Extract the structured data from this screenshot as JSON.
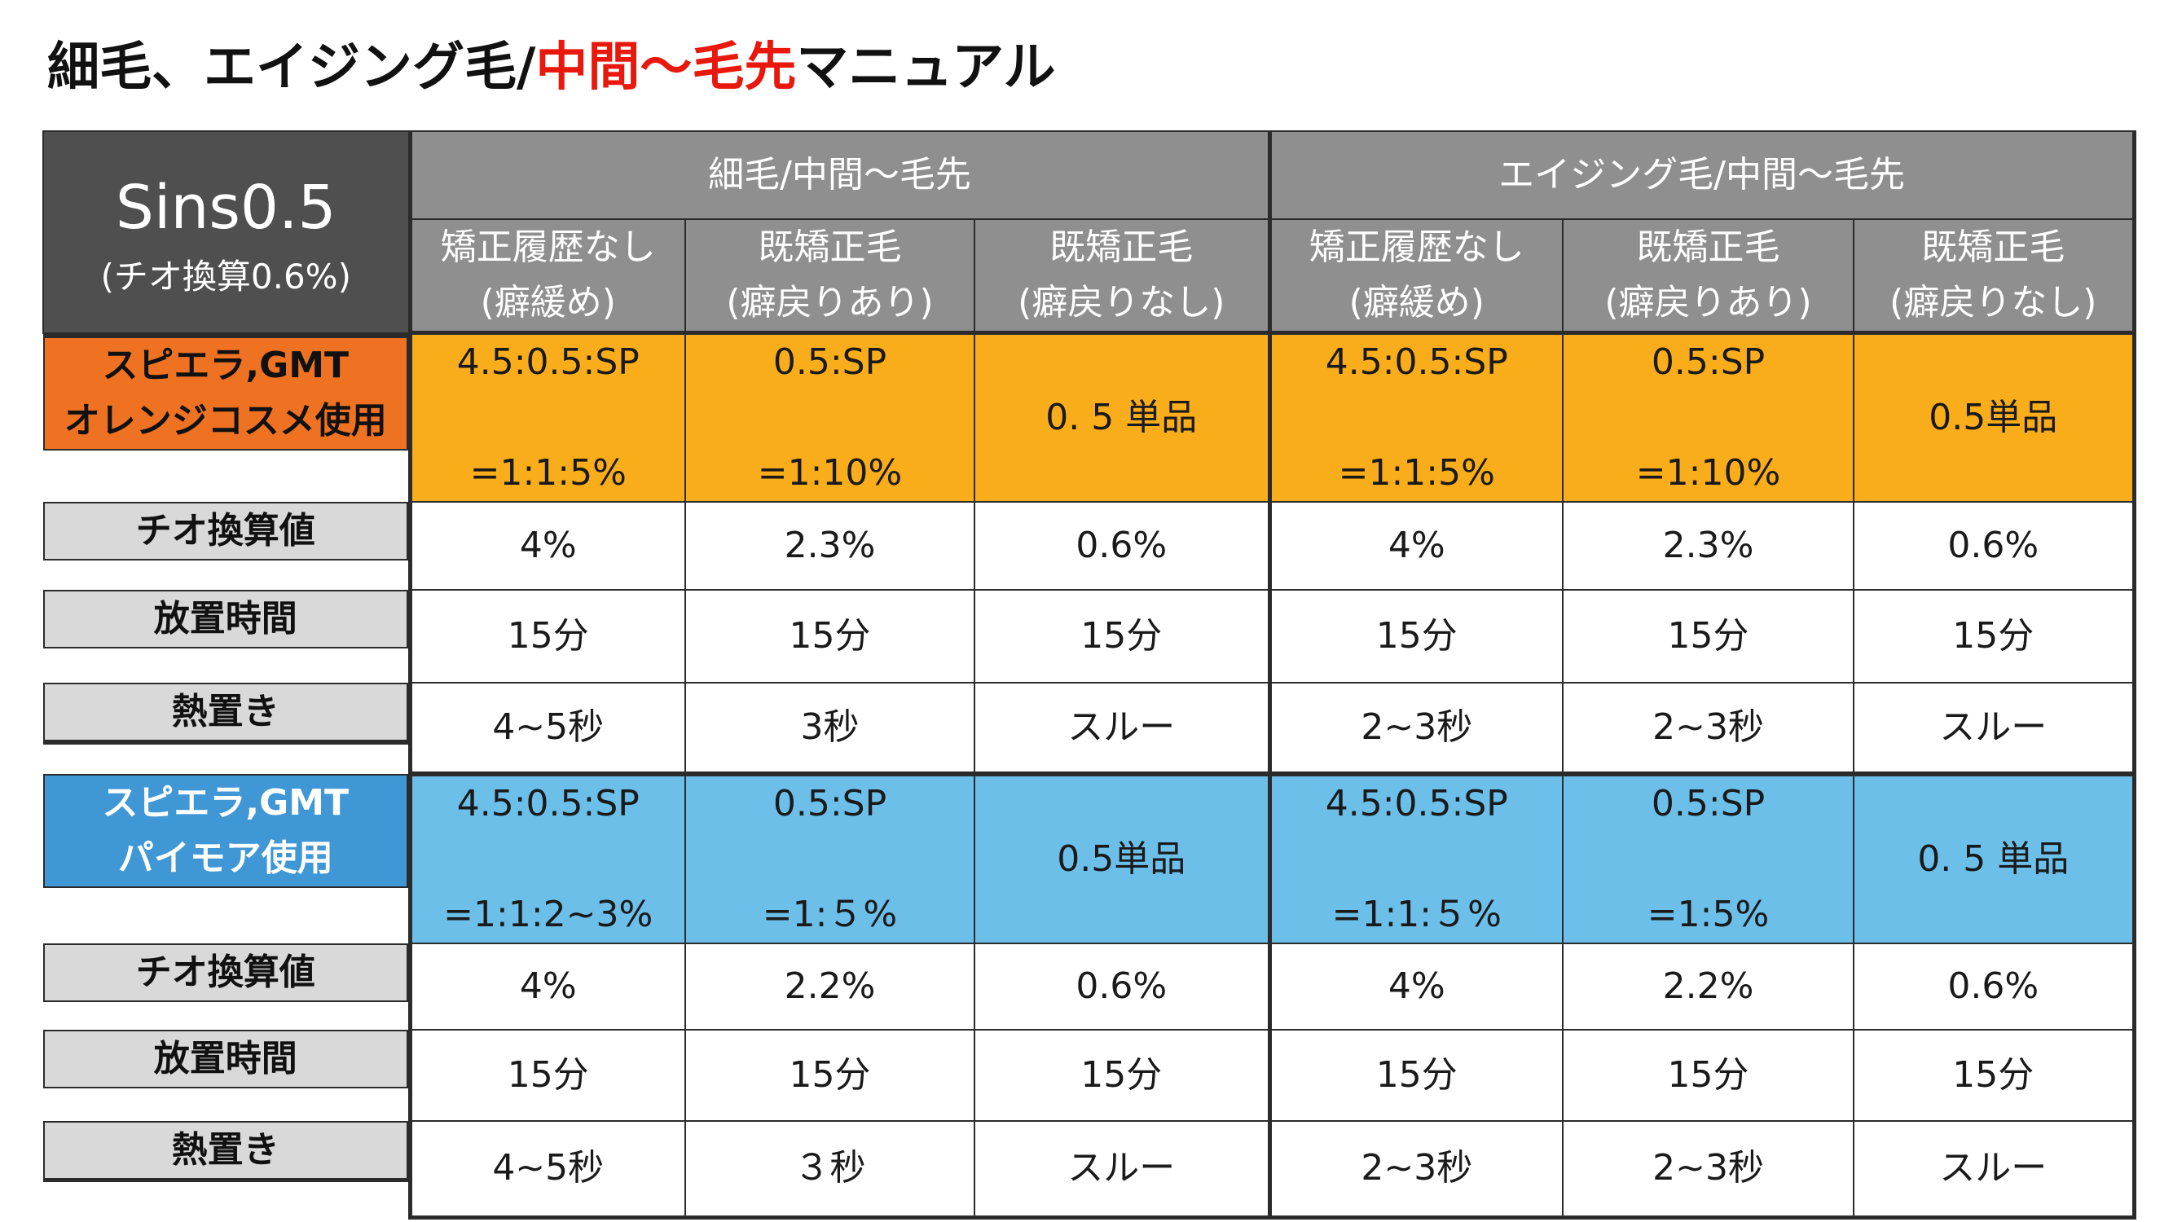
{
  "title": {
    "part1": "細毛、エイジング毛/",
    "part2": "中間〜毛先",
    "part3": "マニュアル"
  },
  "table": {
    "corner": {
      "main": "Sins0.5",
      "sub": "(チオ換算0.6%)"
    },
    "groups": [
      "細毛/中間〜毛先",
      "エイジング毛/中間〜毛先"
    ],
    "subheaders": [
      [
        "矯正履歴なし",
        "(癖緩め)"
      ],
      [
        "既矯正毛",
        "(癖戻りあり)"
      ],
      [
        "既矯正毛",
        "(癖戻りなし)"
      ],
      [
        "矯正履歴なし",
        "(癖緩め)"
      ],
      [
        "既矯正毛",
        "(癖戻りあり)"
      ],
      [
        "既矯正毛",
        "(癖戻りなし)"
      ]
    ],
    "sections": [
      {
        "label": [
          "スピエラ,GMT",
          "オレンジコスメ使用"
        ],
        "color": "#f9ad1a",
        "label_color": "#ee7222",
        "mix": [
          [
            "4.5:0.5:SP",
            "=1:1:5%"
          ],
          [
            "0.5:SP",
            "=1:10%"
          ],
          [
            "0. 5 単品"
          ],
          [
            "4.5:0.5:SP",
            "=1:1:5%"
          ],
          [
            "0.5:SP",
            "=1:10%"
          ],
          [
            "0.5単品"
          ]
        ],
        "rows": [
          {
            "label": "チオ換算値",
            "values": [
              "4%",
              "2.3%",
              "0.6%",
              "4%",
              "2.3%",
              "0.6%"
            ]
          },
          {
            "label": "放置時間",
            "values": [
              "15分",
              "15分",
              "15分",
              "15分",
              "15分",
              "15分"
            ]
          },
          {
            "label": "熱置き",
            "values": [
              "4~5秒",
              "3秒",
              "スルー",
              "2~3秒",
              "2~3秒",
              "スルー"
            ]
          }
        ]
      },
      {
        "label": [
          "スピエラ,GMT",
          "パイモア使用"
        ],
        "color": "#6cbfe9",
        "label_color": "#3f97d6",
        "mix": [
          [
            "4.5:0.5:SP",
            "=1:1:2~3%"
          ],
          [
            "0.5:SP",
            "=1:５%"
          ],
          [
            "0.5単品"
          ],
          [
            "4.5:0.5:SP",
            "=1:1:５%"
          ],
          [
            "0.5:SP",
            "=1:5%"
          ],
          [
            "0. 5 単品"
          ]
        ],
        "rows": [
          {
            "label": "チオ換算値",
            "values": [
              "4%",
              "2.2%",
              "0.6%",
              "4%",
              "2.2%",
              "0.6%"
            ]
          },
          {
            "label": "放置時間",
            "values": [
              "15分",
              "15分",
              "15分",
              "15分",
              "15分",
              "15分"
            ]
          },
          {
            "label": "熱置き",
            "values": [
              "4~5秒",
              "３秒",
              "スルー",
              "2~3秒",
              "2~3秒",
              "スルー"
            ]
          }
        ]
      }
    ]
  }
}
